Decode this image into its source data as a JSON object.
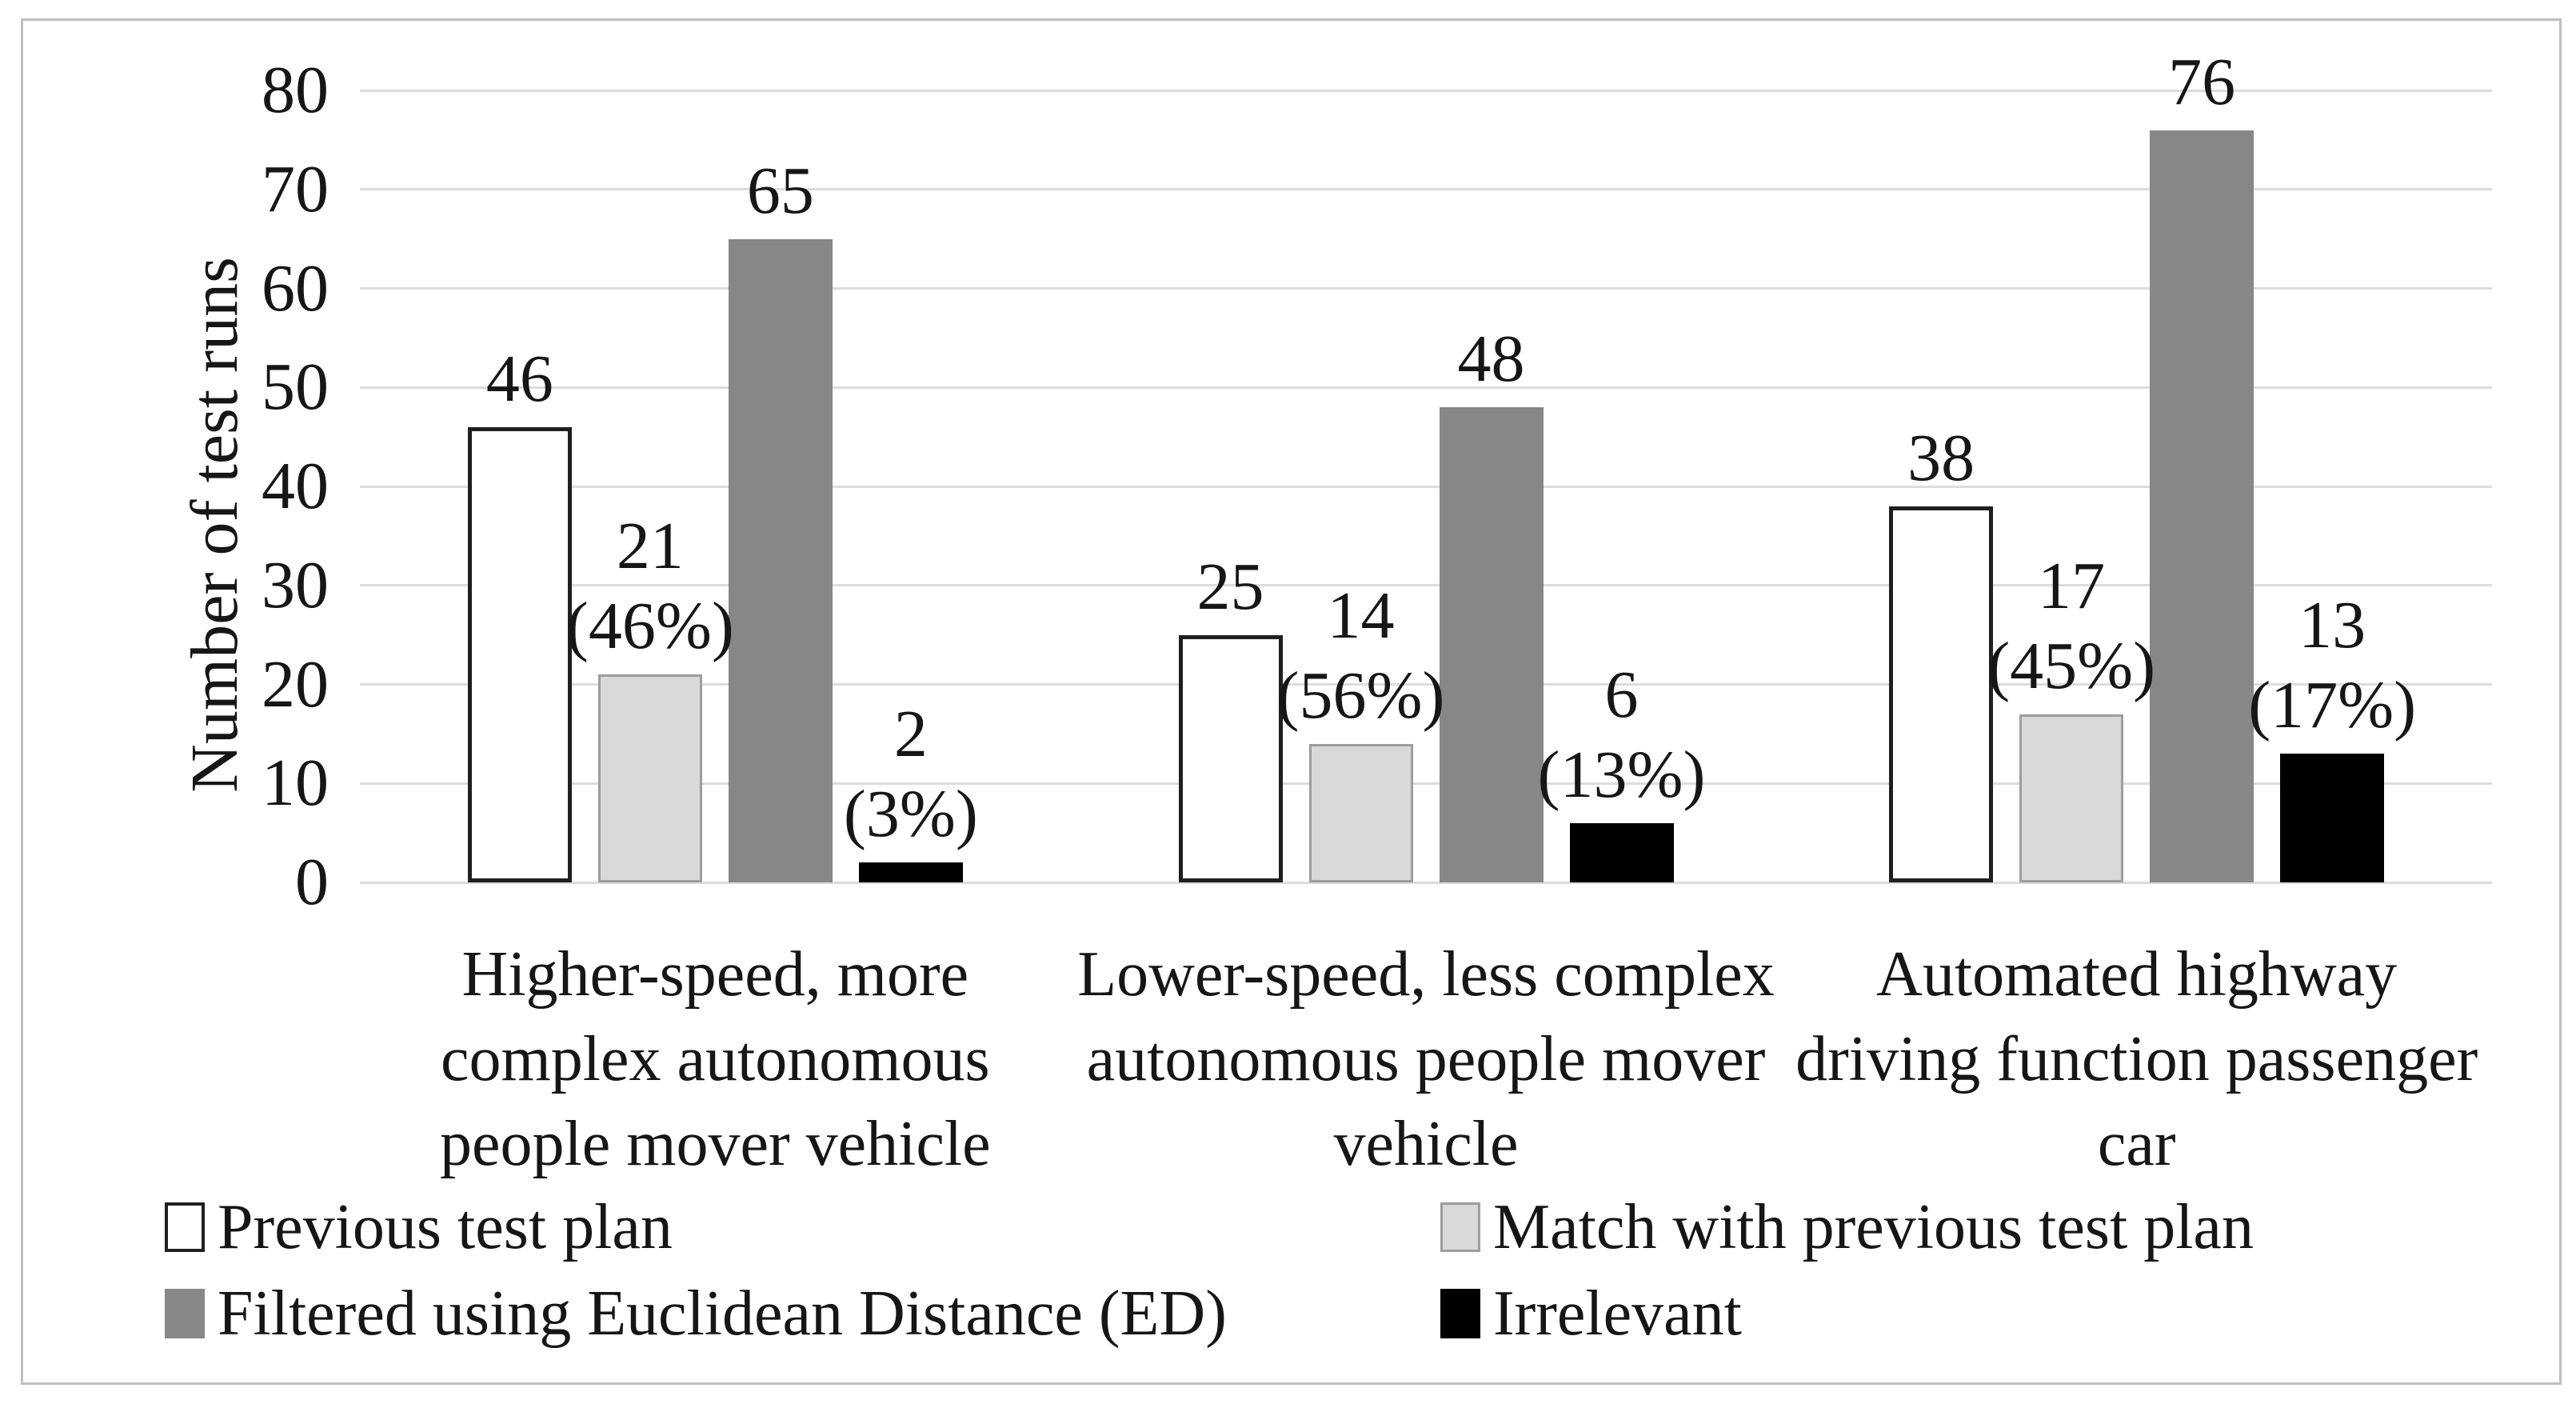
{
  "chart_data": {
    "type": "bar",
    "title": "",
    "ylabel": "Number of test runs",
    "xlabel": "",
    "ylim": [
      0,
      80
    ],
    "yticks": [
      0,
      10,
      20,
      30,
      40,
      50,
      60,
      70,
      80
    ],
    "grid": true,
    "legend_position": "bottom",
    "legend_columns": 2,
    "categories": [
      [
        "Higher-speed, more",
        "complex autonomous",
        "people mover vehicle"
      ],
      [
        "Lower-speed, less complex",
        "autonomous people mover",
        "vehicle"
      ],
      [
        "Automated highway",
        "driving function passenger",
        "car"
      ]
    ],
    "series": [
      {
        "name": "Previous test plan",
        "values": [
          46,
          25,
          38
        ],
        "sublabels": [
          "",
          "",
          ""
        ],
        "fill": "#ffffff",
        "border": "#1f1f1f"
      },
      {
        "name": "Match with previous test plan",
        "values": [
          21,
          14,
          17
        ],
        "sublabels": [
          "(46%)",
          "(56%)",
          "(45%)"
        ],
        "fill": "#d9d9d9",
        "border": "#9d9d9d"
      },
      {
        "name": "Filtered using Euclidean Distance (ED)",
        "values": [
          65,
          48,
          76
        ],
        "sublabels": [
          "",
          "",
          ""
        ],
        "fill": "#878787",
        "border": "#878787"
      },
      {
        "name": "Irrelevant",
        "values": [
          2,
          6,
          13
        ],
        "sublabels": [
          "(3%)",
          "(13%)",
          "(17%)"
        ],
        "fill": "#000000",
        "border": "#000000"
      }
    ],
    "colors": {
      "gridline": "#dcdcdc",
      "text": "#161616",
      "frame_border": "#bfbfbf",
      "background": "#ffffff"
    }
  }
}
